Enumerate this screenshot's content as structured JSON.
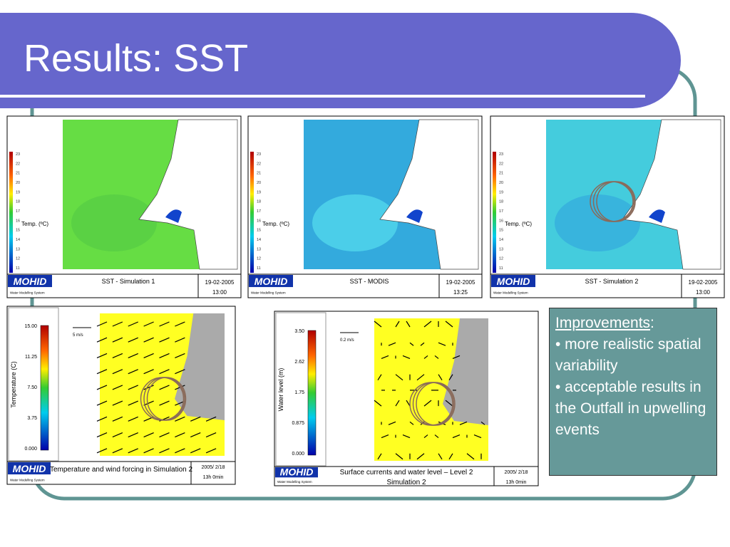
{
  "title": "Results: SST",
  "maps": [
    {
      "colorbar": [
        "23",
        "22",
        "21",
        "20",
        "19",
        "18",
        "17",
        "16",
        "15",
        "14",
        "13",
        "12",
        "11"
      ],
      "unit": "Temp. (ºC)",
      "caption": "SST - Simulation 1",
      "date": "19-02-2005",
      "time": "13:00",
      "logo": "MOHID",
      "logo_sub": "Water Modelling System"
    },
    {
      "colorbar": [
        "23",
        "22",
        "21",
        "20",
        "19",
        "18",
        "17",
        "16",
        "15",
        "14",
        "13",
        "12",
        "11"
      ],
      "unit": "Temp. (ºC)",
      "caption": "SST - MODIS",
      "date": "19-02-2005",
      "time": "13:25",
      "logo": "MOHID",
      "logo_sub": "Water Modelling System"
    },
    {
      "colorbar": [
        "23",
        "22",
        "21",
        "20",
        "19",
        "18",
        "17",
        "16",
        "15",
        "14",
        "13",
        "12",
        "11"
      ],
      "unit": "Temp. (ºC)",
      "caption": "SST - Simulation 2",
      "date": "19-02-2005",
      "time": "13:00",
      "logo": "MOHID",
      "logo_sub": "Water Modelling System"
    }
  ],
  "fields": [
    {
      "colorbar": [
        "15.00",
        "11.25",
        "7.50",
        "3.75",
        "0.000"
      ],
      "axis_label": "Temperature (C)",
      "scale": "5 m/s",
      "caption": [
        "Temperature and wind forcing in Simulation 2"
      ],
      "date": "2005/ 2/18",
      "time": "13h 0min",
      "logo": "MOHID",
      "logo_sub": "Water Modelling System"
    },
    {
      "colorbar": [
        "3.50",
        "2.62",
        "1.75",
        "0.875",
        "0.000"
      ],
      "axis_label": "Water level (m)",
      "scale": "0.2 m/s",
      "caption": [
        "Surface currents and water level – Level 2",
        "Simulation 2"
      ],
      "date": "2005/ 2/18",
      "time": "13h 0min",
      "logo": "MOHID",
      "logo_sub": "Water Modelling System"
    }
  ],
  "notes": {
    "heading": "Improvements",
    "colon": ":",
    "bullets": [
      "• more realistic spatial variability",
      "• acceptable results in the Outfall in upwelling events"
    ]
  }
}
